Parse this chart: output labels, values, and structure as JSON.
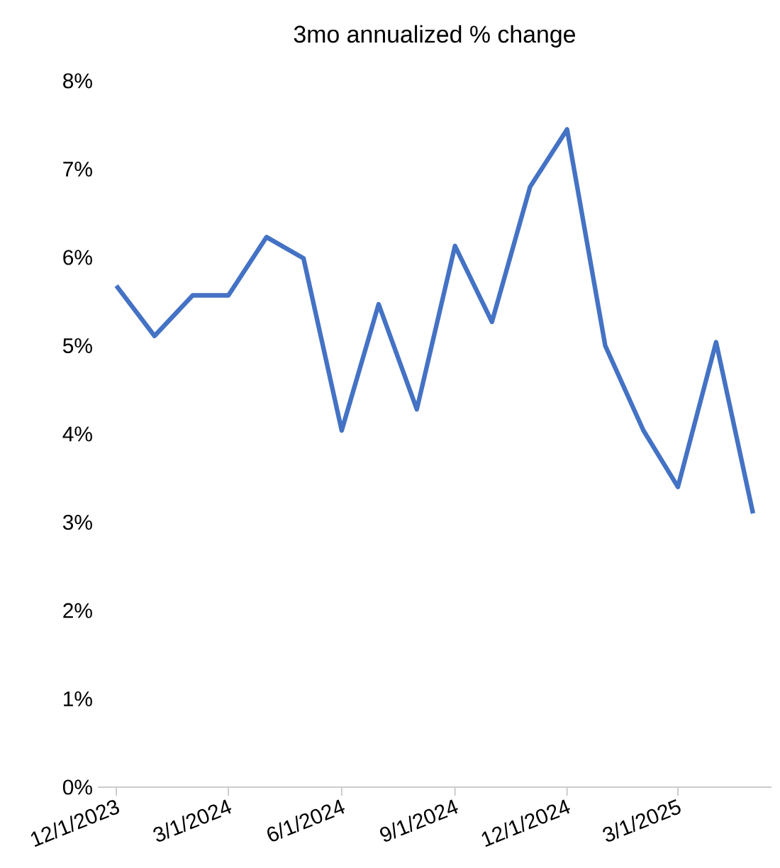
{
  "chart_data": {
    "type": "line",
    "title": "3mo annualized % change",
    "x": [
      "2023-12-01",
      "2024-01-01",
      "2024-02-01",
      "2024-03-01",
      "2024-04-01",
      "2024-05-01",
      "2024-06-01",
      "2024-07-01",
      "2024-08-01",
      "2024-09-01",
      "2024-10-01",
      "2024-11-01",
      "2024-12-01",
      "2025-01-01",
      "2025-02-01",
      "2025-03-01",
      "2025-04-01",
      "2025-05-01"
    ],
    "series": [
      {
        "color": "#4472c4",
        "values": [
          5.68,
          5.11,
          5.57,
          5.57,
          6.23,
          5.99,
          4.04,
          5.47,
          4.28,
          6.13,
          5.27,
          6.8,
          7.45,
          5.0,
          4.04,
          3.4,
          5.04,
          3.1
        ]
      }
    ],
    "xlim": [
      "2023-11-16",
      "2025-05-16"
    ],
    "xticks": [
      {
        "value": "2023-12-01",
        "label": "12/1/2023"
      },
      {
        "value": "2024-03-01",
        "label": "3/1/2024"
      },
      {
        "value": "2024-06-01",
        "label": "6/1/2024"
      },
      {
        "value": "2024-09-01",
        "label": "9/1/2024"
      },
      {
        "value": "2024-12-01",
        "label": "12/1/2024"
      },
      {
        "value": "2025-03-01",
        "label": "3/1/2025"
      }
    ],
    "ylim": [
      0,
      8
    ],
    "yticks": [
      {
        "value": 0,
        "label": "0%"
      },
      {
        "value": 1,
        "label": "1%"
      },
      {
        "value": 2,
        "label": "2%"
      },
      {
        "value": 3,
        "label": "3%"
      },
      {
        "value": 4,
        "label": "4%"
      },
      {
        "value": 5,
        "label": "5%"
      },
      {
        "value": 6,
        "label": "6%"
      },
      {
        "value": 7,
        "label": "7%"
      },
      {
        "value": 8,
        "label": "8%"
      }
    ],
    "marker": "none",
    "line_style": "solid"
  }
}
